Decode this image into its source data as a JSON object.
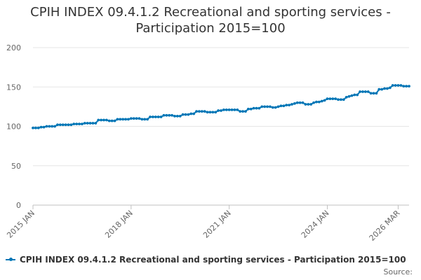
{
  "chart_data": {
    "type": "line",
    "title_lines": [
      "CPIH INDEX 09.4.1.2 Recreational and sporting services -",
      "Participation 2015=100"
    ],
    "xlabel": "",
    "ylabel": "",
    "x_tick_labels": [
      "2015 JAN",
      "2018 JAN",
      "2021 JAN",
      "2024 JAN",
      "2026 MAR"
    ],
    "y_tick_labels": [
      "0",
      "50",
      "100",
      "150",
      "200"
    ],
    "ylim": [
      0,
      200
    ],
    "grid": true,
    "legend_position": "bottom",
    "series": [
      {
        "name": "CPIH INDEX 09.4.1.2 Recreational and sporting services - Participation 2015=100",
        "color": "#0076b6",
        "start": "2015 JAN",
        "end": "2026 MAR",
        "frequency": "monthly",
        "values": [
          98,
          98,
          98,
          99,
          99,
          100,
          100,
          100,
          100,
          102,
          102,
          102,
          102,
          102,
          102,
          103,
          103,
          103,
          103,
          104,
          104,
          104,
          104,
          104,
          108,
          108,
          108,
          108,
          107,
          107,
          107,
          109,
          109,
          109,
          109,
          109,
          110,
          110,
          110,
          110,
          109,
          109,
          109,
          112,
          112,
          112,
          112,
          112,
          114,
          114,
          114,
          114,
          113,
          113,
          113,
          115,
          115,
          115,
          116,
          116,
          119,
          119,
          119,
          119,
          118,
          118,
          118,
          118,
          120,
          120,
          121,
          121,
          121,
          121,
          121,
          121,
          119,
          119,
          119,
          122,
          122,
          123,
          123,
          123,
          125,
          125,
          125,
          125,
          124,
          124,
          125,
          126,
          126,
          127,
          127,
          128,
          129,
          130,
          130,
          130,
          128,
          128,
          128,
          130,
          131,
          131,
          132,
          133,
          135,
          135,
          135,
          135,
          134,
          134,
          134,
          137,
          138,
          139,
          140,
          140,
          144,
          144,
          144,
          144,
          142,
          142,
          142,
          147,
          147,
          148,
          148,
          149,
          152,
          152,
          152,
          152,
          151,
          151,
          151
        ]
      }
    ]
  },
  "source_label": "Source:"
}
